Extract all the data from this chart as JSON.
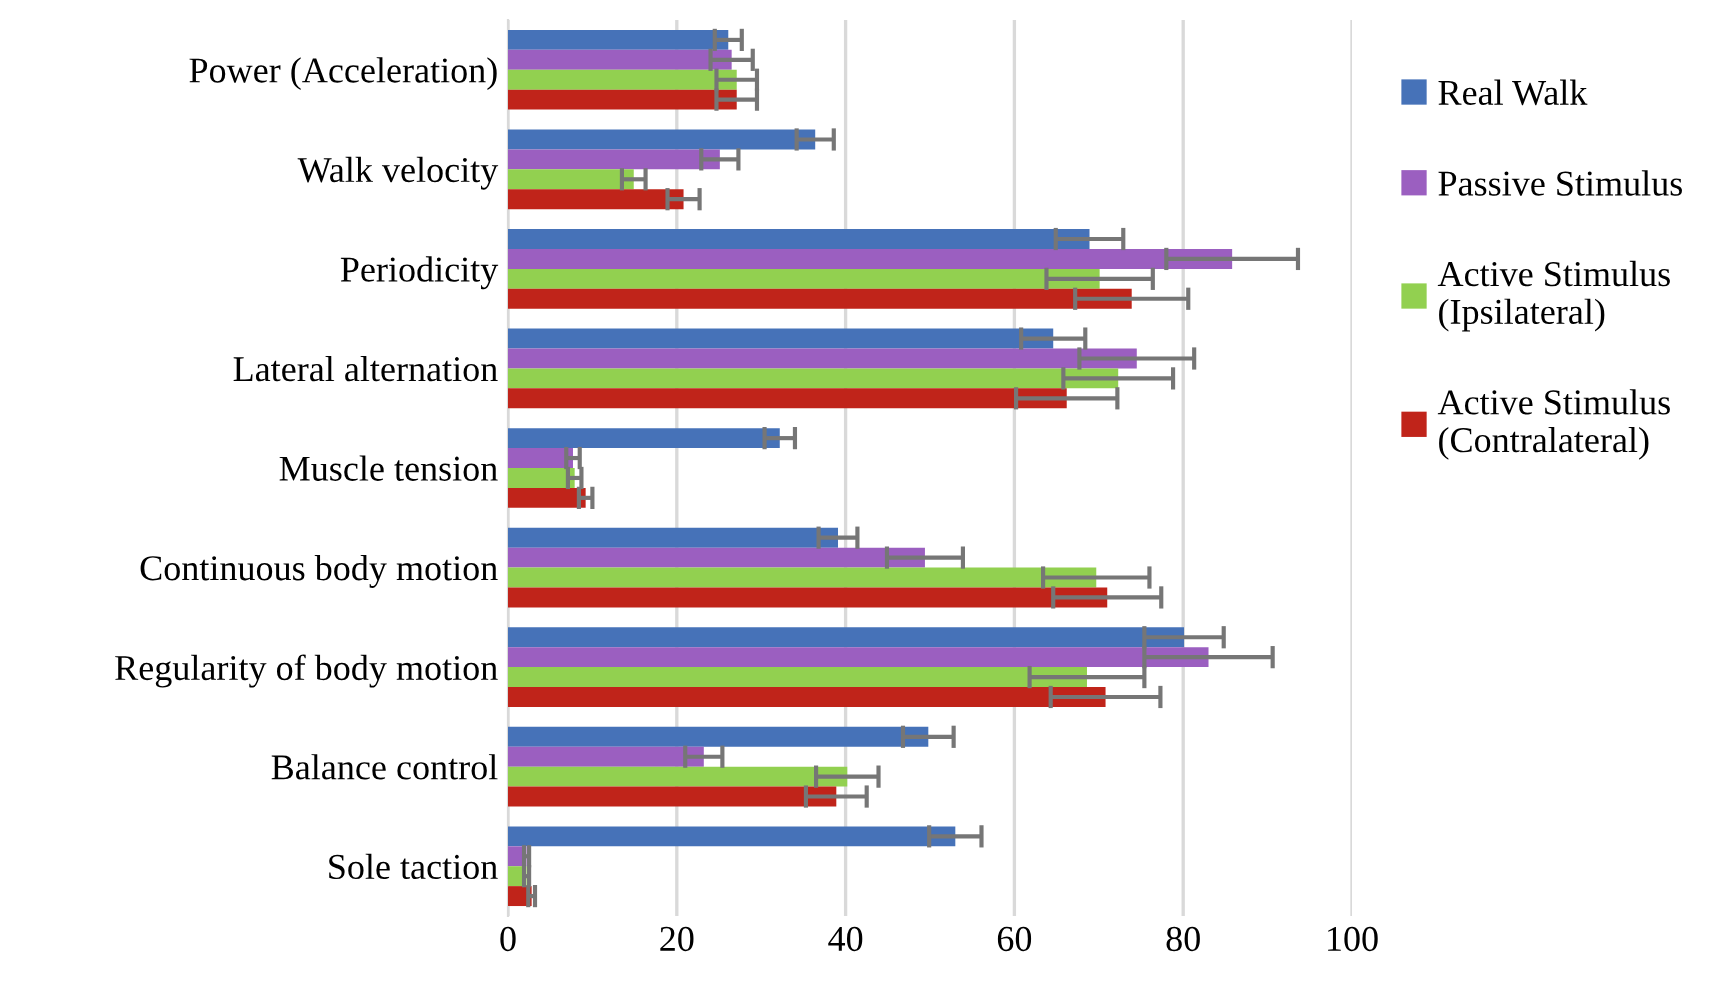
{
  "chart_data": {
    "type": "bar",
    "orientation": "horizontal",
    "categories": [
      "Power (Acceleration)",
      "Walk velocity",
      "Periodicity",
      "Lateral alternation",
      "Muscle tension",
      "Continuous body motion",
      "Regularity of body motion",
      "Balance control",
      "Sole taction"
    ],
    "series": [
      {
        "name": "Real Walk",
        "color": "#4672b8",
        "values": [
          26.1,
          36.4,
          68.9,
          64.6,
          32.2,
          39.1,
          80.1,
          49.8,
          53.0
        ],
        "errors": [
          1.6,
          2.2,
          4.0,
          3.8,
          1.8,
          2.3,
          4.7,
          3.0,
          3.1
        ]
      },
      {
        "name": "Passive Stimulus",
        "color": "#9b5fc0",
        "values": [
          26.5,
          25.1,
          85.8,
          74.5,
          7.7,
          49.4,
          83.0,
          23.2,
          2.2
        ],
        "errors": [
          2.5,
          2.2,
          7.8,
          6.8,
          0.8,
          4.5,
          7.6,
          2.2,
          0.3
        ]
      },
      {
        "name": "Active Stimulus (Ipsilateral)",
        "color": "#92d050",
        "values": [
          27.1,
          14.9,
          70.1,
          72.3,
          7.9,
          69.7,
          68.6,
          40.2,
          2.2
        ],
        "errors": [
          2.4,
          1.4,
          6.3,
          6.5,
          0.8,
          6.3,
          6.8,
          3.7,
          0.3
        ]
      },
      {
        "name": "Active Stimulus (Contralateral)",
        "color": "#c0241a",
        "values": [
          27.1,
          20.8,
          73.9,
          66.2,
          9.2,
          71.0,
          70.8,
          38.9,
          2.8
        ],
        "errors": [
          2.4,
          1.9,
          6.7,
          6.0,
          0.8,
          6.4,
          6.5,
          3.6,
          0.4
        ]
      }
    ],
    "xlim": [
      0,
      100
    ],
    "xticks": [
      0,
      20,
      40,
      60,
      80,
      100
    ],
    "grid": "x",
    "legend": "right"
  }
}
